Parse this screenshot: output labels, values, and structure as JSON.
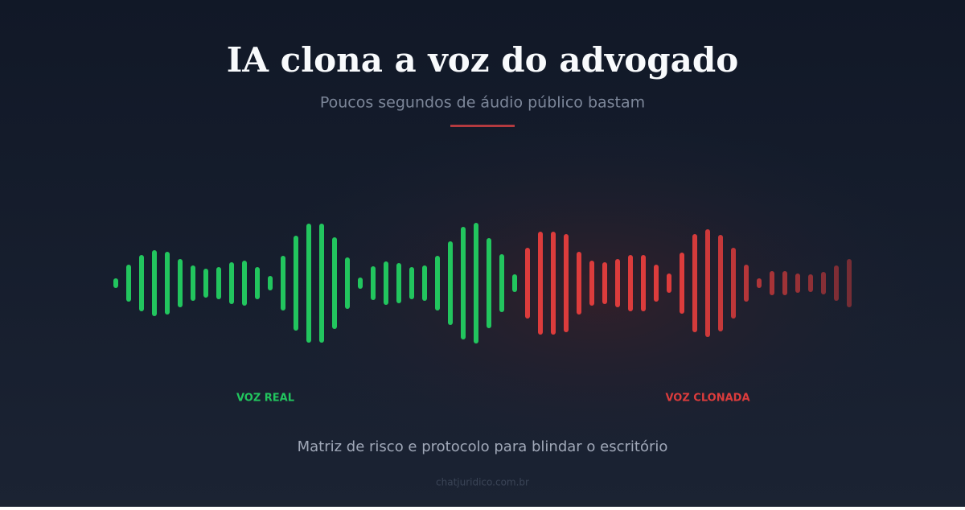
{
  "header": {
    "title": "IA clona a voz do advogado",
    "subtitle": "Poucos segundos de áudio público bastam"
  },
  "labels": {
    "real": "VOZ REAL",
    "cloned": "VOZ CLONADA"
  },
  "tagline": "Matriz de risco e protocolo para blindar o escritório",
  "footer": "chatjuridico.com.br"
}
